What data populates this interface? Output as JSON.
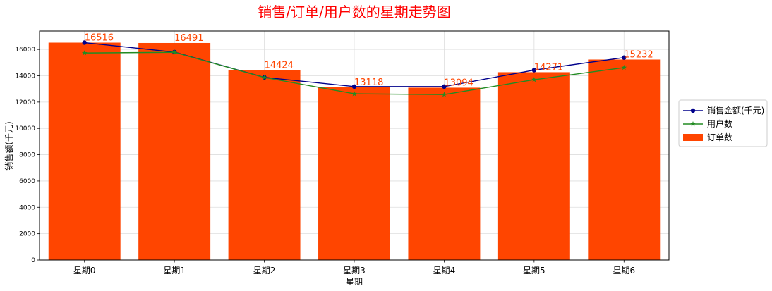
{
  "chart_data": {
    "type": "bar",
    "title": "销售/订单/用户数的星期走势图",
    "xlabel": "星期",
    "ylabel": "销售额(千元)",
    "categories": [
      "星期0",
      "星期1",
      "星期2",
      "星期3",
      "星期4",
      "星期5",
      "星期6"
    ],
    "ylim": [
      0,
      17400
    ],
    "yticks": [
      0,
      2000,
      4000,
      6000,
      8000,
      10000,
      12000,
      14000,
      16000
    ],
    "grid": true,
    "legend_position": "right",
    "series": [
      {
        "name": "订单数",
        "type": "bar",
        "color": "#ff4500",
        "values": [
          16516,
          16491,
          14424,
          13118,
          13094,
          14271,
          15232
        ],
        "data_labels": [
          "16516",
          "16491",
          "14424",
          "13118",
          "13094",
          "14271",
          "15232"
        ]
      },
      {
        "name": "销售金额(千元)",
        "type": "line",
        "marker": "circle",
        "color": "#00008b",
        "values": [
          16516,
          15800,
          13880,
          13180,
          13180,
          14430,
          15380
        ]
      },
      {
        "name": "用户数",
        "type": "line",
        "marker": "star",
        "color": "#228b22",
        "values": [
          15730,
          15780,
          13870,
          12630,
          12570,
          13700,
          14620
        ]
      }
    ]
  }
}
